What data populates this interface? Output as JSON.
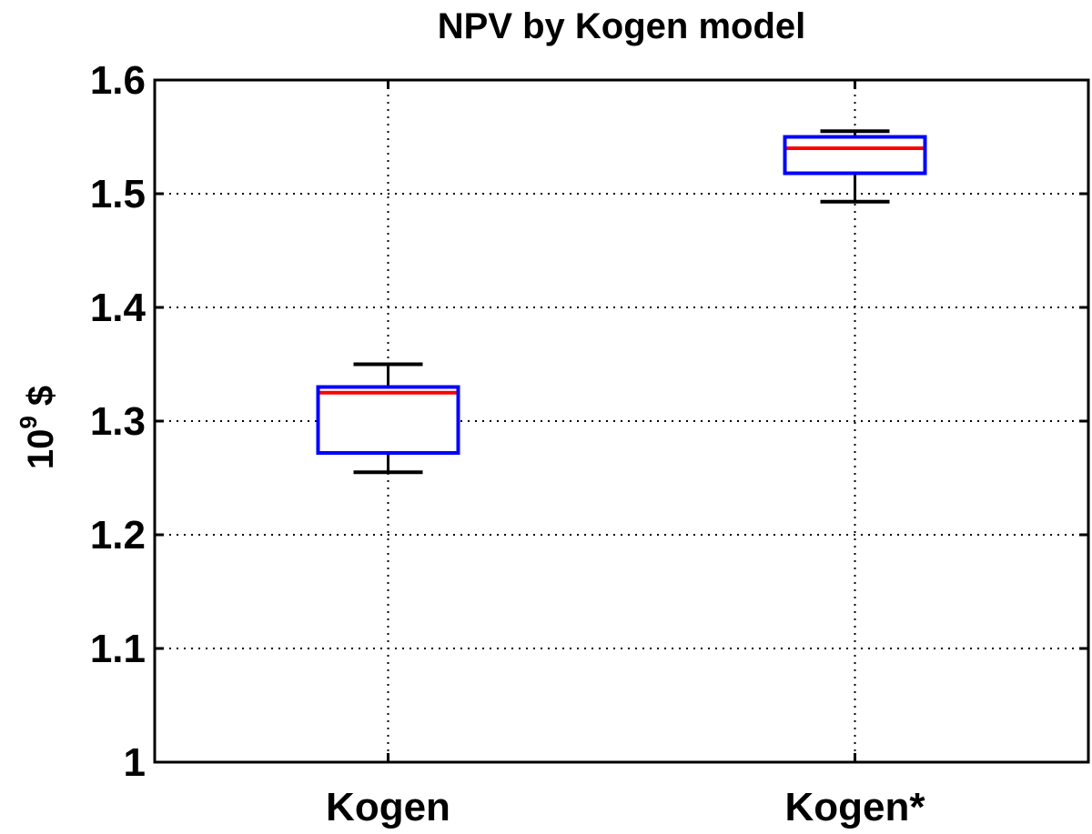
{
  "chart_data": {
    "type": "box",
    "title": "NPV by Kogen model",
    "ylabel": {
      "base": "10",
      "exponent": "9",
      "unit": "$"
    },
    "xlabel": "",
    "categories": [
      "Kogen",
      "Kogen*"
    ],
    "ylim": [
      1.0,
      1.6
    ],
    "yticks": [
      1,
      1.1,
      1.2,
      1.3,
      1.4,
      1.5,
      1.6
    ],
    "ytick_labels": [
      "1",
      "1.1",
      "1.2",
      "1.3",
      "1.4",
      "1.5",
      "1.6"
    ],
    "grid": true,
    "boxes": [
      {
        "category": "Kogen",
        "whisker_low": 1.255,
        "q1": 1.272,
        "median": 1.325,
        "q3": 1.33,
        "whisker_high": 1.35
      },
      {
        "category": "Kogen*",
        "whisker_low": 1.493,
        "q1": 1.518,
        "median": 1.54,
        "q3": 1.55,
        "whisker_high": 1.555
      }
    ],
    "colors": {
      "box": "#0000ff",
      "median": "#ff0000",
      "whisker": "#000000",
      "grid": "#000000",
      "axes": "#000000"
    }
  }
}
